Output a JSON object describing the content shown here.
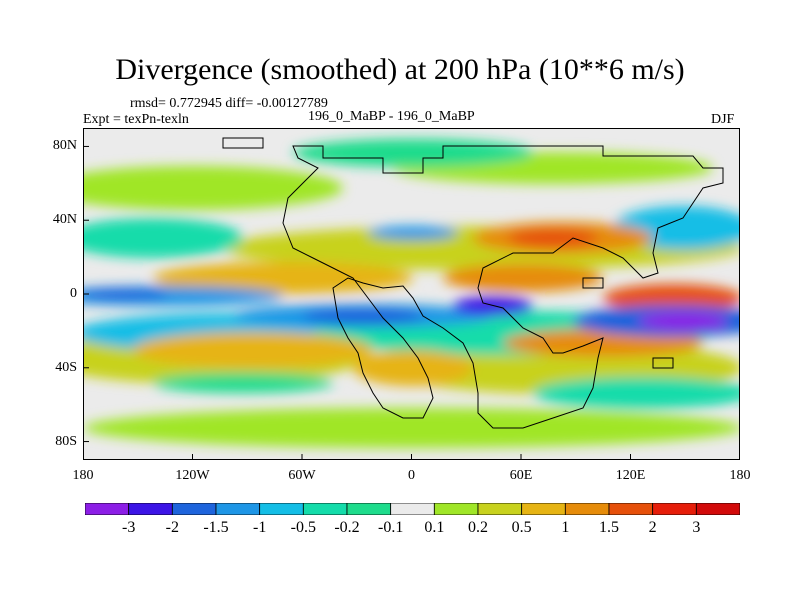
{
  "title": "Divergence (smoothed) at 200 hPa (10**6 m/s)",
  "stats_line": "rmsd= 0.772945 diff= -0.00127789",
  "expt_label": "Expt = texPn-texln",
  "comparison_label": "196_0_MaBP - 196_0_MaBP",
  "season_label": "DJF",
  "chart_data": {
    "type": "heatmap",
    "projection": "cylindrical-equidistant",
    "variable": "divergence (smoothed) at 200 hPa",
    "units": "10**6 m/s",
    "x_range": [
      -180,
      180
    ],
    "y_range": [
      -90,
      90
    ],
    "x_ticks": [
      {
        "value": -180,
        "label": "180"
      },
      {
        "value": -120,
        "label": "120W"
      },
      {
        "value": -60,
        "label": "60W"
      },
      {
        "value": 0,
        "label": "0"
      },
      {
        "value": 60,
        "label": "60E"
      },
      {
        "value": 120,
        "label": "120E"
      },
      {
        "value": 180,
        "label": "180"
      }
    ],
    "y_ticks": [
      {
        "value": 80,
        "label": "80N"
      },
      {
        "value": 40,
        "label": "40N"
      },
      {
        "value": 0,
        "label": "0"
      },
      {
        "value": -40,
        "label": "40S"
      },
      {
        "value": -80,
        "label": "80S"
      }
    ],
    "levels": [
      -3,
      -2,
      -1.5,
      -1,
      -0.5,
      -0.2,
      -0.1,
      0.1,
      0.2,
      0.5,
      1,
      1.5,
      2,
      3
    ],
    "level_labels": [
      "-3",
      "-2",
      "-1.5",
      "-1",
      "-0.5",
      "-0.2",
      "-0.1",
      "0.1",
      "0.2",
      "0.5",
      "1",
      "1.5",
      "2",
      "3"
    ],
    "colors": [
      "#8c1ee6",
      "#3c14e6",
      "#1e64dc",
      "#1e96e6",
      "#14bee6",
      "#14dcaa",
      "#1edc8c",
      "#ebebeb",
      "#a0e628",
      "#c8d21e",
      "#e6b414",
      "#e68c0a",
      "#e6500a",
      "#e61e0a",
      "#d20a0a"
    ]
  }
}
